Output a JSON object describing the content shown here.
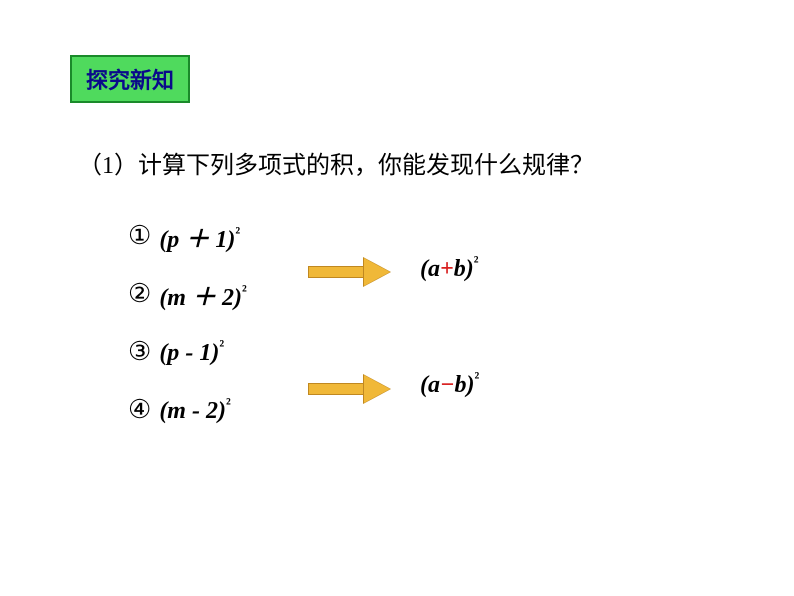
{
  "header": {
    "badge_text": "探究新知",
    "badge_bg_color": "#4fda5d",
    "badge_border_color": "#1a8a2a",
    "badge_text_color": "#0a0a8a"
  },
  "question": {
    "prefix": "（1）",
    "text": "计算下列多项式的积，你能发现什么规律？"
  },
  "expressions": [
    {
      "num": "①",
      "expr_open": "(p ",
      "op": "＋",
      "expr_close": " 1)",
      "sup": "²"
    },
    {
      "num": "②",
      "expr_open": "(m ",
      "op": "＋",
      "expr_close": " 2)",
      "sup": "²"
    },
    {
      "num": "③",
      "expr_open": "(p ",
      "op": "-",
      "expr_close": " 1)",
      "sup": "²"
    },
    {
      "num": "④",
      "expr_open": "(m ",
      "op": "-",
      "expr_close": " 2)",
      "sup": "²"
    }
  ],
  "results": [
    {
      "open": "(",
      "a": "a",
      "op": "+",
      "b": "b",
      "close": ")",
      "sup": "²"
    },
    {
      "open": "(",
      "a": "a",
      "op": "−",
      "b": "b",
      "close": ")",
      "sup": "²"
    }
  ],
  "colors": {
    "arrow_fill": "#f0b838",
    "arrow_border": "#c08820",
    "red_operator": "#d82020",
    "text_black": "#000000"
  }
}
